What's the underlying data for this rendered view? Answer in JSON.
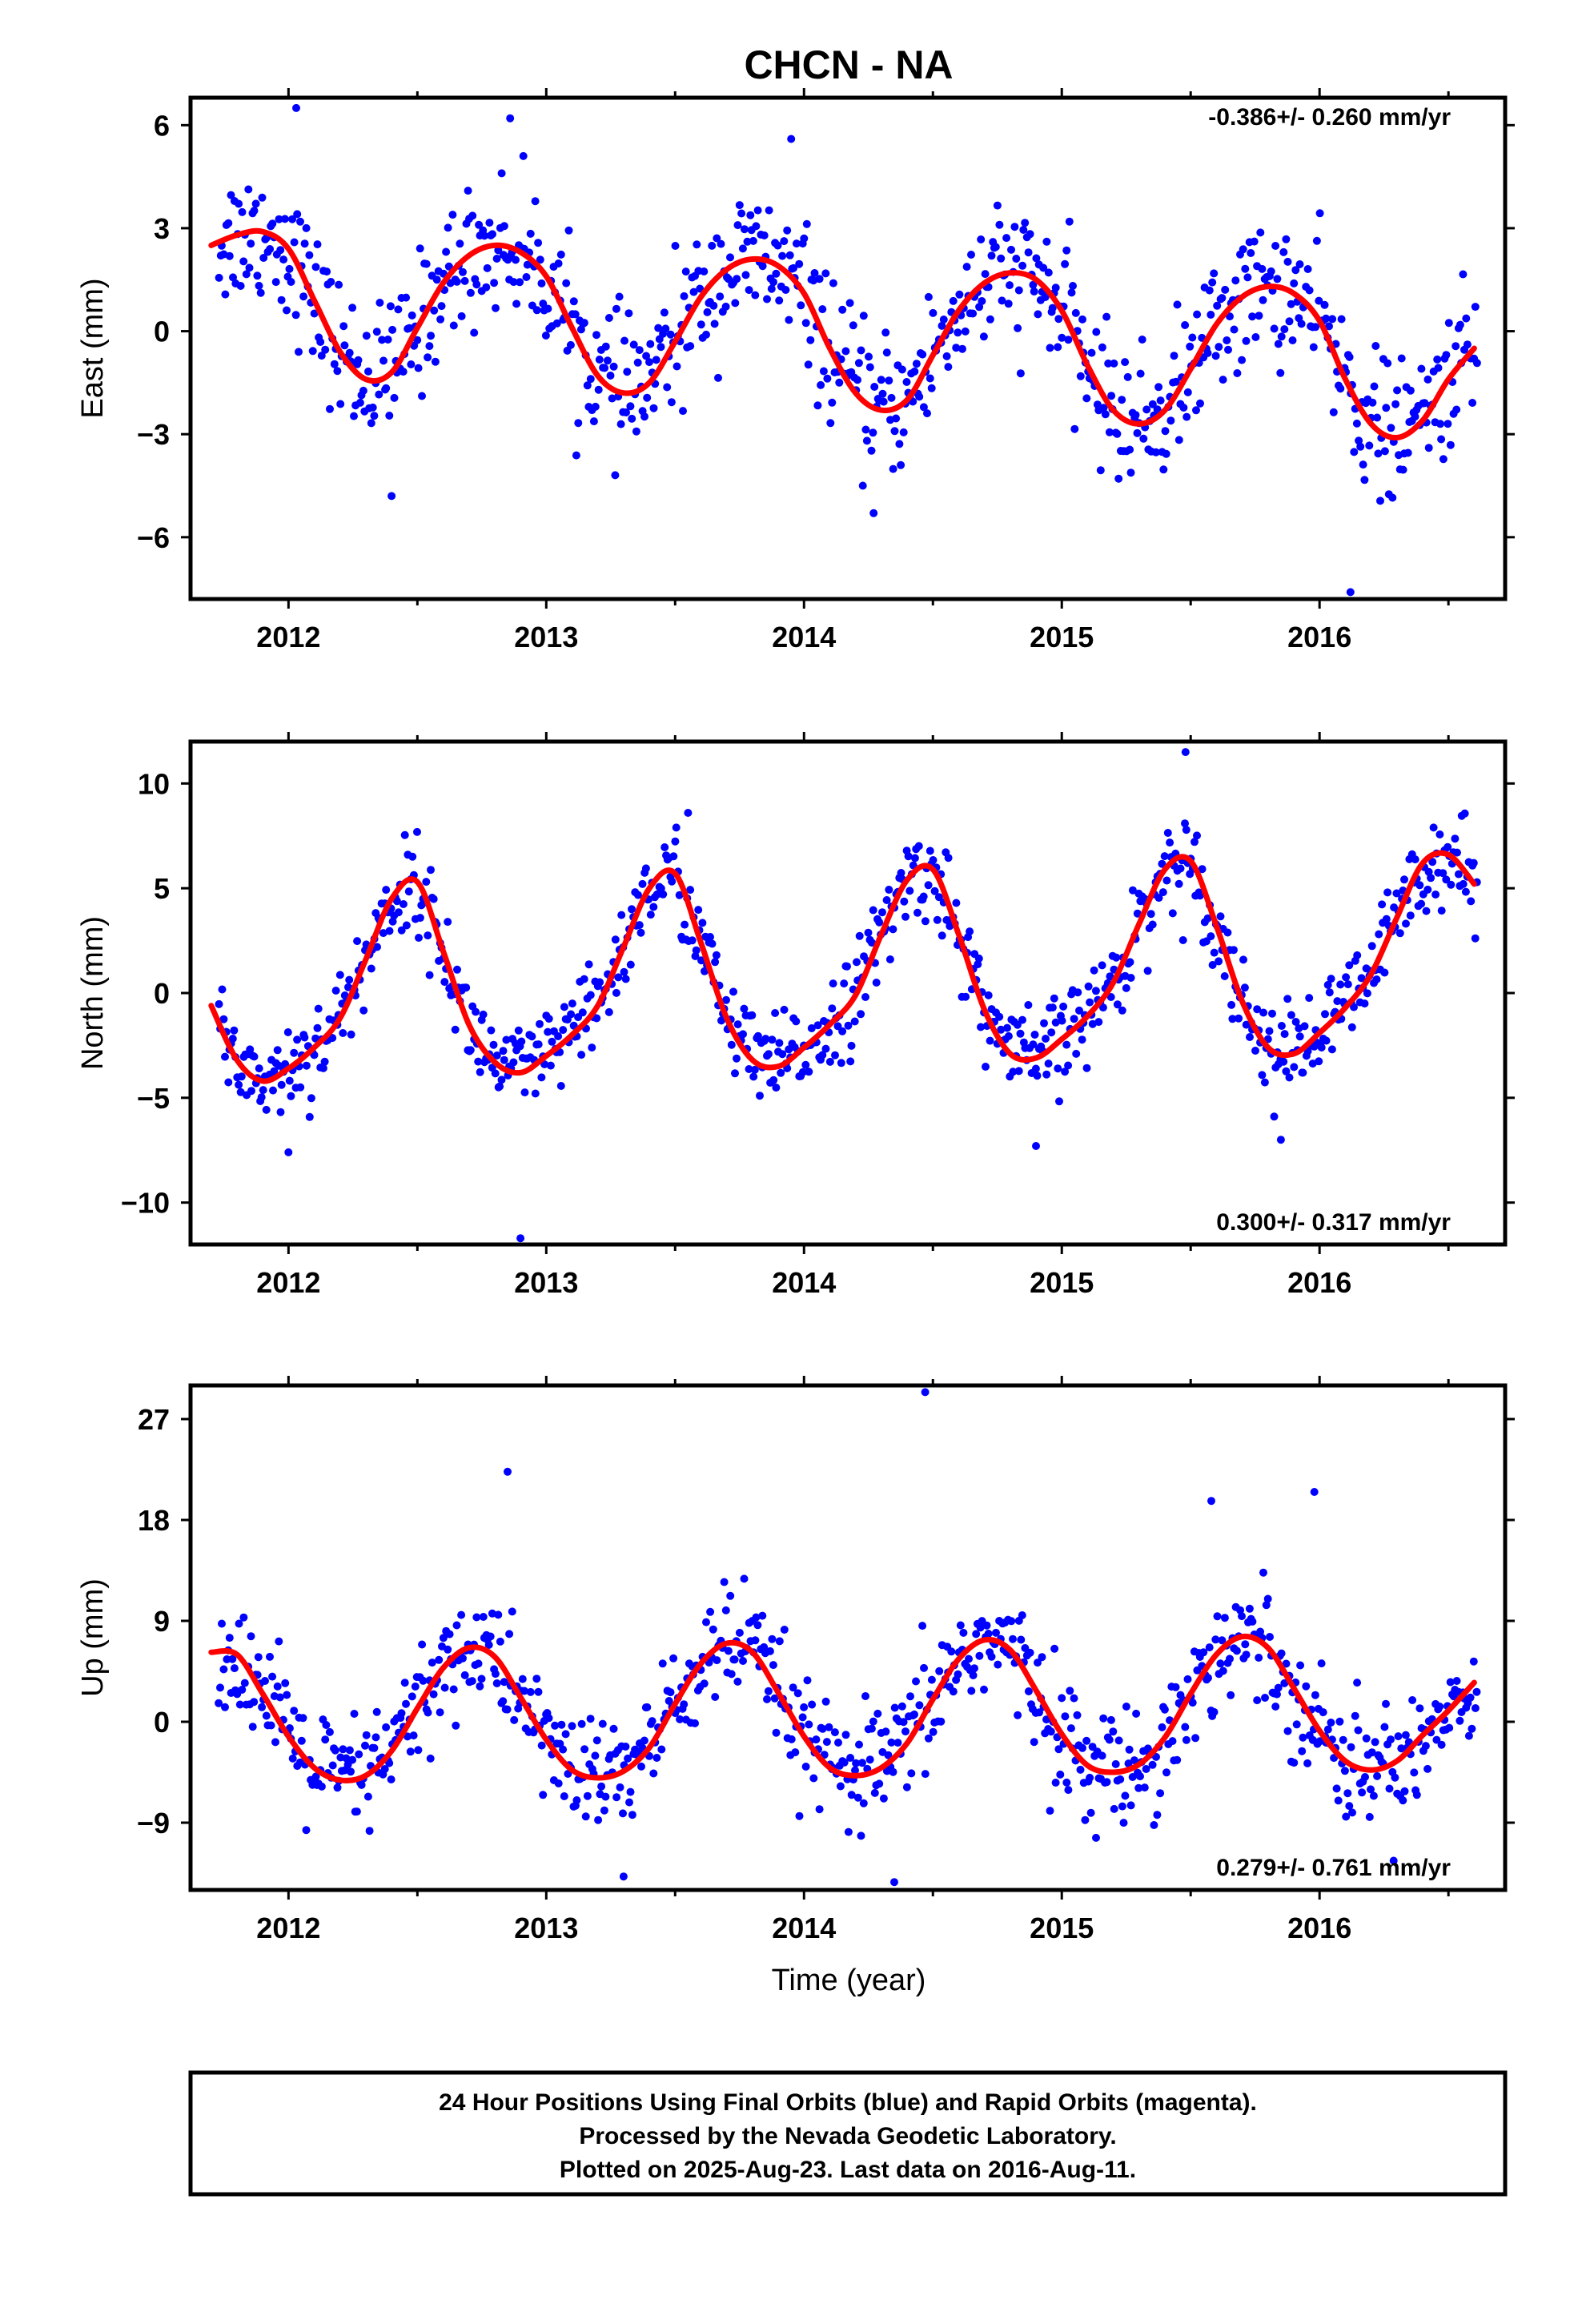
{
  "title": "CHCN - NA",
  "xlabel": "Time (year)",
  "footer": {
    "line1": "24 Hour Positions Using Final Orbits (blue) and Rapid Orbits (magenta).",
    "line2": "Processed by the Nevada Geodetic Laboratory.",
    "line3": "Plotted on 2025-Aug-23. Last data on 2016-Aug-11."
  },
  "colors": {
    "points": "#0000ff",
    "fit": "#ff0000",
    "frame": "#000000"
  },
  "chart_data": [
    {
      "type": "scatter",
      "name": "east",
      "ylabel": "East (mm)",
      "xlim": [
        2011.62,
        2016.72
      ],
      "ylim": [
        -7.8,
        6.8
      ],
      "yticks": [
        -6,
        -3,
        0,
        3,
        6
      ],
      "yticklabels": [
        "−6",
        "−3",
        "0",
        "3",
        "6"
      ],
      "xticks": [
        2012,
        2013,
        2014,
        2015,
        2016
      ],
      "xticklabels": [
        "2012",
        "2013",
        "2014",
        "2015",
        "2016"
      ],
      "rate_text": "-0.386+/- 0.260 mm/yr",
      "rate_position": "top-right",
      "fit": {
        "x": [
          2011.7,
          2011.8,
          2011.9,
          2012.0,
          2012.1,
          2012.2,
          2012.3,
          2012.4,
          2012.5,
          2012.6,
          2012.7,
          2012.8,
          2012.9,
          2013.0,
          2013.1,
          2013.2,
          2013.3,
          2013.4,
          2013.5,
          2013.6,
          2013.7,
          2013.8,
          2013.9,
          2014.0,
          2014.1,
          2014.2,
          2014.3,
          2014.4,
          2014.5,
          2014.6,
          2014.7,
          2014.8,
          2014.9,
          2015.0,
          2015.1,
          2015.2,
          2015.3,
          2015.4,
          2015.5,
          2015.6,
          2015.7,
          2015.8,
          2015.9,
          2016.0,
          2016.1,
          2016.2,
          2016.3,
          2016.4,
          2016.5,
          2016.6
        ],
        "y": [
          2.5,
          2.8,
          2.9,
          2.4,
          0.9,
          -0.6,
          -1.4,
          -1.2,
          0.1,
          1.4,
          2.2,
          2.5,
          2.3,
          1.6,
          0.1,
          -1.3,
          -1.8,
          -1.5,
          -0.3,
          1.0,
          1.8,
          2.1,
          1.9,
          1.1,
          -0.5,
          -1.8,
          -2.3,
          -2.0,
          -0.7,
          0.6,
          1.4,
          1.7,
          1.5,
          0.6,
          -1.0,
          -2.3,
          -2.7,
          -2.3,
          -1.1,
          0.2,
          1.0,
          1.3,
          1.1,
          0.3,
          -1.4,
          -2.7,
          -3.1,
          -2.6,
          -1.4,
          -0.5
        ]
      },
      "scatter_sd": 1.0,
      "outliers": {
        "x": [
          2012.03,
          2012.4,
          2012.86,
          2013.95,
          2014.27,
          2016.12
        ],
        "y": [
          6.5,
          -4.8,
          6.2,
          5.6,
          -5.3,
          -7.6
        ]
      }
    },
    {
      "type": "scatter",
      "name": "north",
      "ylabel": "North (mm)",
      "xlim": [
        2011.62,
        2016.72
      ],
      "ylim": [
        -12.0,
        12.0
      ],
      "yticks": [
        -10,
        -5,
        0,
        5,
        10
      ],
      "yticklabels": [
        "−10",
        "−5",
        "0",
        "5",
        "10"
      ],
      "xticks": [
        2012,
        2013,
        2014,
        2015,
        2016
      ],
      "xticklabels": [
        "2012",
        "2013",
        "2014",
        "2015",
        "2016"
      ],
      "rate_text": "0.300+/- 0.317 mm/yr",
      "rate_position": "bottom-right",
      "fit": {
        "x": [
          2011.7,
          2011.8,
          2011.9,
          2012.0,
          2012.1,
          2012.2,
          2012.3,
          2012.4,
          2012.5,
          2012.6,
          2012.7,
          2012.8,
          2012.9,
          2013.0,
          2013.1,
          2013.2,
          2013.3,
          2013.4,
          2013.5,
          2013.6,
          2013.7,
          2013.8,
          2013.9,
          2014.0,
          2014.1,
          2014.2,
          2014.3,
          2014.4,
          2014.5,
          2014.6,
          2014.7,
          2014.8,
          2014.9,
          2015.0,
          2015.1,
          2015.2,
          2015.3,
          2015.4,
          2015.5,
          2015.6,
          2015.7,
          2015.8,
          2015.9,
          2016.0,
          2016.1,
          2016.2,
          2016.3,
          2016.4,
          2016.5,
          2016.6
        ],
        "y": [
          -0.6,
          -3.2,
          -4.2,
          -3.6,
          -2.6,
          -1.2,
          1.6,
          4.5,
          5.3,
          2.0,
          -1.5,
          -3.3,
          -3.8,
          -3.0,
          -2.0,
          -0.6,
          2.2,
          5.0,
          5.7,
          2.4,
          -1.2,
          -3.2,
          -3.5,
          -2.6,
          -1.5,
          -0.1,
          2.8,
          5.4,
          5.9,
          2.8,
          -0.8,
          -2.9,
          -3.1,
          -2.2,
          -1.1,
          0.5,
          3.3,
          5.9,
          6.3,
          3.2,
          -0.4,
          -2.6,
          -2.9,
          -1.9,
          -0.7,
          0.9,
          3.6,
          6.2,
          6.6,
          5.2
        ]
      },
      "scatter_sd": 1.1,
      "outliers": {
        "x": [
          2012.0,
          2012.9,
          2013.55,
          2014.9,
          2015.48,
          2015.85
        ],
        "y": [
          -7.6,
          -11.7,
          8.6,
          -7.3,
          11.5,
          -7.0
        ]
      }
    },
    {
      "type": "scatter",
      "name": "up",
      "ylabel": "Up (mm)",
      "xlim": [
        2011.62,
        2016.72
      ],
      "ylim": [
        -15.0,
        30.0
      ],
      "yticks": [
        -9,
        0,
        9,
        18,
        27
      ],
      "yticklabels": [
        "−9",
        "0",
        "9",
        "18",
        "27"
      ],
      "xticks": [
        2012,
        2013,
        2014,
        2015,
        2016
      ],
      "xticklabels": [
        "2012",
        "2013",
        "2014",
        "2015",
        "2016"
      ],
      "rate_text": "0.279+/- 0.761 mm/yr",
      "rate_position": "bottom-right",
      "fit": {
        "x": [
          2011.7,
          2011.8,
          2011.9,
          2012.0,
          2012.1,
          2012.2,
          2012.3,
          2012.4,
          2012.5,
          2012.6,
          2012.7,
          2012.8,
          2012.9,
          2013.0,
          2013.1,
          2013.2,
          2013.3,
          2013.4,
          2013.5,
          2013.6,
          2013.7,
          2013.8,
          2013.9,
          2014.0,
          2014.1,
          2014.2,
          2014.3,
          2014.4,
          2014.5,
          2014.6,
          2014.7,
          2014.8,
          2014.9,
          2015.0,
          2015.1,
          2015.2,
          2015.3,
          2015.4,
          2015.5,
          2015.6,
          2015.7,
          2015.8,
          2015.9,
          2016.0,
          2016.1,
          2016.2,
          2016.3,
          2016.4,
          2016.5,
          2016.6
        ],
        "y": [
          6.2,
          6.0,
          2.5,
          -1.3,
          -4.1,
          -5.2,
          -4.8,
          -2.6,
          1.2,
          4.8,
          6.6,
          5.8,
          2.2,
          -1.6,
          -4.3,
          -5.0,
          -4.4,
          -2.3,
          1.6,
          5.2,
          7.0,
          6.2,
          2.6,
          -1.3,
          -4.1,
          -4.8,
          -4.1,
          -1.9,
          2.0,
          5.6,
          7.3,
          6.4,
          2.8,
          -1.1,
          -3.9,
          -4.5,
          -3.8,
          -1.4,
          2.5,
          6.0,
          7.6,
          6.6,
          3.0,
          -0.8,
          -3.5,
          -4.3,
          -3.5,
          -1.2,
          1.0,
          3.5
        ]
      },
      "scatter_sd": 2.6,
      "outliers": {
        "x": [
          2012.85,
          2013.3,
          2014.35,
          2014.47,
          2015.58,
          2015.98
        ],
        "y": [
          22.3,
          -13.8,
          -14.3,
          29.4,
          19.7,
          20.5
        ]
      }
    }
  ]
}
